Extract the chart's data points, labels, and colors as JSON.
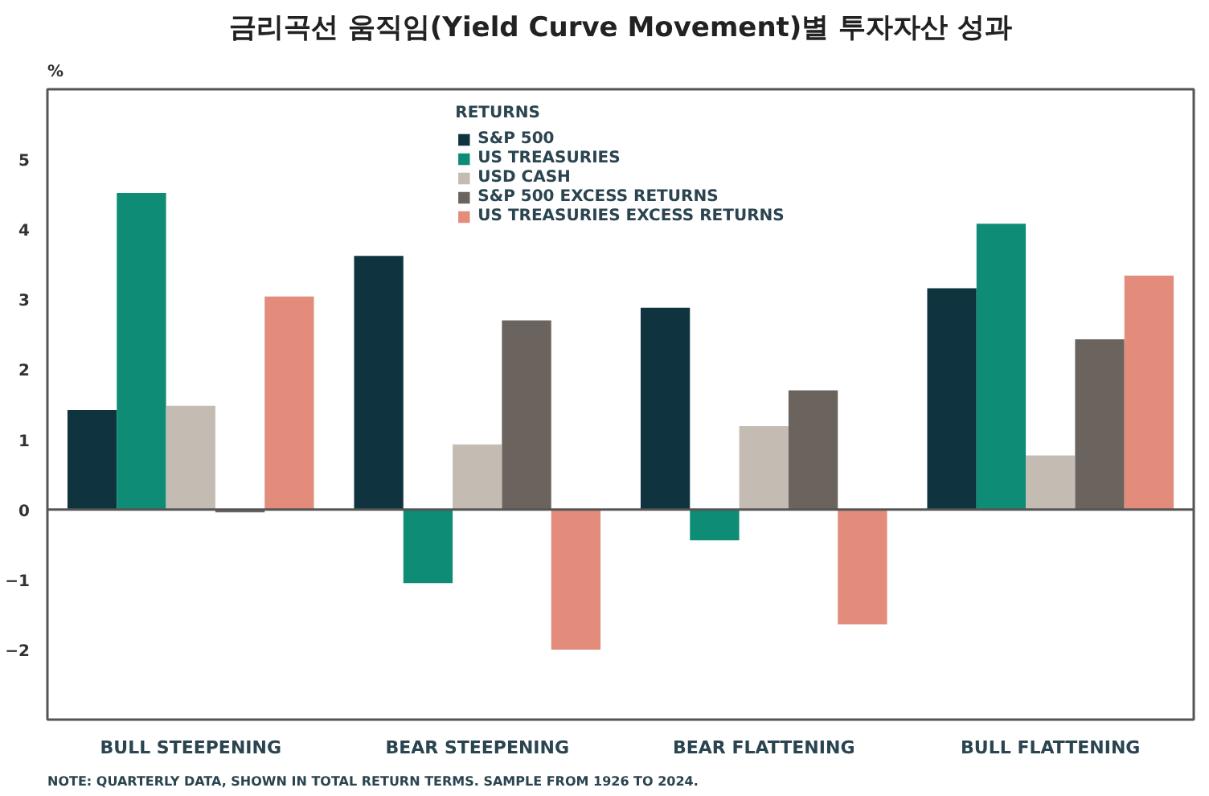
{
  "chart_data": {
    "type": "bar",
    "title": "금리곡선 움직임(Yield Curve Movement)별 투자자산 성과",
    "ylabel": "%",
    "categories": [
      "BULL STEEPENING",
      "BEAR STEEPENING",
      "BEAR FLATTENING",
      "BULL FLATTENING"
    ],
    "series": [
      {
        "name": "S&P 500",
        "color": "#0f3440",
        "values": [
          1.42,
          3.62,
          2.88,
          3.16
        ]
      },
      {
        "name": "US TREASURIES",
        "color": "#0e8c76",
        "values": [
          4.52,
          -1.05,
          -0.44,
          4.08
        ]
      },
      {
        "name": "USD CASH",
        "color": "#c4bbb3",
        "values": [
          1.48,
          0.93,
          1.19,
          0.77
        ]
      },
      {
        "name": "S&P 500 EXCESS RETURNS",
        "color": "#6b645e",
        "values": [
          -0.04,
          2.7,
          1.7,
          2.43
        ]
      },
      {
        "name": "US TREASURIES EXCESS RETURNS",
        "color": "#e38c7c",
        "values": [
          3.04,
          -2.0,
          -1.64,
          3.34
        ]
      }
    ],
    "legend_title": "RETURNS",
    "legend": "top",
    "ylim": [
      -3,
      6
    ],
    "yticks": [
      -2,
      -1,
      0,
      1,
      2,
      3,
      4,
      5
    ],
    "annotations": [
      "NOTE: QUARTERLY DATA, SHOWN IN TOTAL RETURN TERMS. SAMPLE FROM 1926 TO 2024."
    ]
  }
}
